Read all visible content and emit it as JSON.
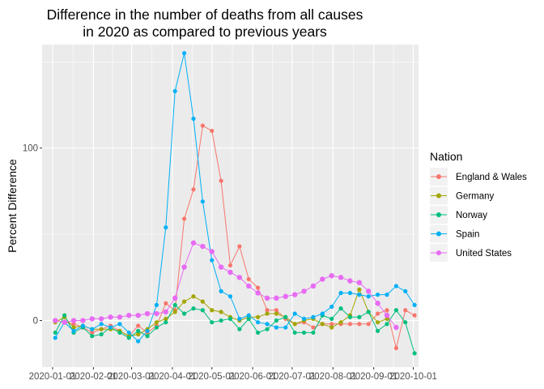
{
  "chart_data": {
    "type": "line",
    "title": [
      "Difference in the number of deaths from all causes",
      "in 2020 as compared to previous years"
    ],
    "xlabel": "",
    "ylabel": "Percent Difference",
    "x_ticks": [
      "2020-01-01",
      "2020-02-01",
      "2020-03-01",
      "2020-04-01",
      "2020-05-01",
      "2020-06-01",
      "2020-07-01",
      "2020-08-01",
      "2020-09-01",
      "2020-10-01"
    ],
    "y_ticks": [
      0,
      100
    ],
    "xlim": [
      "2019-12-24",
      "2020-10-05"
    ],
    "ylim": [
      -27,
      160
    ],
    "grid": true,
    "legend_position": "right",
    "legend_title": "Nation",
    "series": [
      {
        "name": "England & Wales",
        "color": "#F8766D",
        "points": [
          [
            "2020-01-03",
            0
          ],
          [
            "2020-01-10",
            -1
          ],
          [
            "2020-01-17",
            -2
          ],
          [
            "2020-01-24",
            -4
          ],
          [
            "2020-01-31",
            -7
          ],
          [
            "2020-02-07",
            -5
          ],
          [
            "2020-02-14",
            -3
          ],
          [
            "2020-02-21",
            -6
          ],
          [
            "2020-02-28",
            -9
          ],
          [
            "2020-03-06",
            -3
          ],
          [
            "2020-03-13",
            -7
          ],
          [
            "2020-03-20",
            -3
          ],
          [
            "2020-03-27",
            10
          ],
          [
            "2020-04-03",
            6
          ],
          [
            "2020-04-10",
            59
          ],
          [
            "2020-04-17",
            76
          ],
          [
            "2020-04-24",
            113
          ],
          [
            "2020-05-01",
            110
          ],
          [
            "2020-05-08",
            81
          ],
          [
            "2020-05-15",
            32
          ],
          [
            "2020-05-22",
            43
          ],
          [
            "2020-05-29",
            24
          ],
          [
            "2020-06-05",
            19
          ],
          [
            "2020-06-12",
            6
          ],
          [
            "2020-06-19",
            6
          ],
          [
            "2020-06-26",
            1
          ],
          [
            "2020-07-03",
            -2
          ],
          [
            "2020-07-10",
            -1
          ],
          [
            "2020-07-17",
            -4
          ],
          [
            "2020-07-24",
            -2
          ],
          [
            "2020-07-31",
            -2
          ],
          [
            "2020-08-07",
            -2
          ],
          [
            "2020-08-14",
            -2
          ],
          [
            "2020-08-21",
            -2
          ],
          [
            "2020-08-28",
            -2
          ],
          [
            "2020-09-04",
            4
          ],
          [
            "2020-09-11",
            6
          ],
          [
            "2020-09-18",
            -16
          ],
          [
            "2020-09-25",
            6
          ],
          [
            "2020-10-02",
            3
          ]
        ]
      },
      {
        "name": "Germany",
        "color": "#A3A500",
        "points": [
          [
            "2020-01-03",
            -1
          ],
          [
            "2020-01-10",
            2
          ],
          [
            "2020-01-17",
            -4
          ],
          [
            "2020-01-24",
            -3
          ],
          [
            "2020-01-31",
            -5
          ],
          [
            "2020-02-07",
            -5
          ],
          [
            "2020-02-14",
            -5
          ],
          [
            "2020-02-21",
            -6
          ],
          [
            "2020-02-28",
            -9
          ],
          [
            "2020-03-06",
            -8
          ],
          [
            "2020-03-13",
            -5
          ],
          [
            "2020-03-20",
            -1
          ],
          [
            "2020-03-27",
            1
          ],
          [
            "2020-04-03",
            5
          ],
          [
            "2020-04-10",
            11
          ],
          [
            "2020-04-17",
            14
          ],
          [
            "2020-04-24",
            11
          ],
          [
            "2020-05-01",
            6
          ],
          [
            "2020-05-08",
            5
          ],
          [
            "2020-05-15",
            2
          ],
          [
            "2020-05-22",
            0
          ],
          [
            "2020-05-29",
            2
          ],
          [
            "2020-06-05",
            2
          ],
          [
            "2020-06-12",
            4
          ],
          [
            "2020-06-19",
            4
          ],
          [
            "2020-06-26",
            2
          ],
          [
            "2020-07-03",
            -2
          ],
          [
            "2020-07-10",
            0
          ],
          [
            "2020-07-17",
            1
          ],
          [
            "2020-07-24",
            -2
          ],
          [
            "2020-07-31",
            -4
          ],
          [
            "2020-08-07",
            -1
          ],
          [
            "2020-08-14",
            3
          ],
          [
            "2020-08-21",
            18
          ],
          [
            "2020-08-28",
            5
          ],
          [
            "2020-09-04",
            -1
          ],
          [
            "2020-09-11",
            1
          ]
        ]
      },
      {
        "name": "Norway",
        "color": "#00BF7D",
        "points": [
          [
            "2020-01-03",
            -7
          ],
          [
            "2020-01-10",
            3
          ],
          [
            "2020-01-17",
            -7
          ],
          [
            "2020-01-24",
            -4
          ],
          [
            "2020-01-31",
            -9
          ],
          [
            "2020-02-07",
            -8
          ],
          [
            "2020-02-14",
            -4
          ],
          [
            "2020-02-21",
            -7
          ],
          [
            "2020-02-28",
            -10
          ],
          [
            "2020-03-06",
            -6
          ],
          [
            "2020-03-13",
            -9
          ],
          [
            "2020-03-20",
            -4
          ],
          [
            "2020-03-27",
            -1
          ],
          [
            "2020-04-03",
            9
          ],
          [
            "2020-04-10",
            4
          ],
          [
            "2020-04-17",
            7
          ],
          [
            "2020-04-24",
            6
          ],
          [
            "2020-05-01",
            -1
          ],
          [
            "2020-05-08",
            0
          ],
          [
            "2020-05-15",
            1
          ],
          [
            "2020-05-22",
            -5
          ],
          [
            "2020-05-29",
            1
          ],
          [
            "2020-06-05",
            -7
          ],
          [
            "2020-06-12",
            -5
          ],
          [
            "2020-06-19",
            0
          ],
          [
            "2020-06-26",
            2
          ],
          [
            "2020-07-03",
            -7
          ],
          [
            "2020-07-10",
            -7
          ],
          [
            "2020-07-17",
            -7
          ],
          [
            "2020-07-24",
            3
          ],
          [
            "2020-07-31",
            1
          ],
          [
            "2020-08-07",
            7
          ],
          [
            "2020-08-14",
            2
          ],
          [
            "2020-08-21",
            2
          ],
          [
            "2020-08-28",
            5
          ],
          [
            "2020-09-04",
            -6
          ],
          [
            "2020-09-11",
            -2
          ],
          [
            "2020-09-18",
            6
          ],
          [
            "2020-09-25",
            -1
          ],
          [
            "2020-10-02",
            -19
          ]
        ]
      },
      {
        "name": "Spain",
        "color": "#00B0F6",
        "points": [
          [
            "2020-01-03",
            -10
          ],
          [
            "2020-01-10",
            -1
          ],
          [
            "2020-01-17",
            -6
          ],
          [
            "2020-01-24",
            -3
          ],
          [
            "2020-01-31",
            -5
          ],
          [
            "2020-02-07",
            -2
          ],
          [
            "2020-02-14",
            -4
          ],
          [
            "2020-02-21",
            -2
          ],
          [
            "2020-02-28",
            -7
          ],
          [
            "2020-03-06",
            -12
          ],
          [
            "2020-03-13",
            -6
          ],
          [
            "2020-03-20",
            9
          ],
          [
            "2020-03-27",
            54
          ],
          [
            "2020-04-03",
            133
          ],
          [
            "2020-04-10",
            155
          ],
          [
            "2020-04-17",
            117
          ],
          [
            "2020-04-24",
            69
          ],
          [
            "2020-05-01",
            35
          ],
          [
            "2020-05-08",
            17
          ],
          [
            "2020-05-15",
            14
          ],
          [
            "2020-05-22",
            1
          ],
          [
            "2020-05-29",
            3
          ],
          [
            "2020-06-05",
            -1
          ],
          [
            "2020-06-12",
            -2
          ],
          [
            "2020-06-19",
            -4
          ],
          [
            "2020-06-26",
            -4
          ],
          [
            "2020-07-03",
            4
          ],
          [
            "2020-07-10",
            1
          ],
          [
            "2020-07-17",
            2
          ],
          [
            "2020-07-24",
            4
          ],
          [
            "2020-07-31",
            8
          ],
          [
            "2020-08-07",
            16
          ],
          [
            "2020-08-14",
            16
          ],
          [
            "2020-08-21",
            15
          ],
          [
            "2020-08-28",
            14
          ],
          [
            "2020-09-04",
            15
          ],
          [
            "2020-09-11",
            15
          ],
          [
            "2020-09-18",
            20
          ],
          [
            "2020-09-25",
            17
          ],
          [
            "2020-10-02",
            9
          ]
        ]
      },
      {
        "name": "United States",
        "color": "#E76BF3",
        "points": [
          [
            "2020-01-03",
            0
          ],
          [
            "2020-01-10",
            -1
          ],
          [
            "2020-01-17",
            0
          ],
          [
            "2020-01-24",
            0
          ],
          [
            "2020-01-31",
            1
          ],
          [
            "2020-02-07",
            1
          ],
          [
            "2020-02-14",
            2
          ],
          [
            "2020-02-21",
            2
          ],
          [
            "2020-02-28",
            3
          ],
          [
            "2020-03-06",
            3
          ],
          [
            "2020-03-13",
            4
          ],
          [
            "2020-03-20",
            4
          ],
          [
            "2020-03-27",
            5
          ],
          [
            "2020-04-03",
            13
          ],
          [
            "2020-04-10",
            31
          ],
          [
            "2020-04-17",
            45
          ],
          [
            "2020-04-24",
            43
          ],
          [
            "2020-05-01",
            40
          ],
          [
            "2020-05-08",
            31
          ],
          [
            "2020-05-15",
            28
          ],
          [
            "2020-05-22",
            25
          ],
          [
            "2020-05-29",
            20
          ],
          [
            "2020-06-05",
            16
          ],
          [
            "2020-06-12",
            13
          ],
          [
            "2020-06-19",
            13
          ],
          [
            "2020-06-26",
            14
          ],
          [
            "2020-07-03",
            15
          ],
          [
            "2020-07-10",
            17
          ],
          [
            "2020-07-17",
            20
          ],
          [
            "2020-07-24",
            24
          ],
          [
            "2020-07-31",
            26
          ],
          [
            "2020-08-07",
            25
          ],
          [
            "2020-08-14",
            23
          ],
          [
            "2020-08-21",
            22
          ],
          [
            "2020-08-28",
            17
          ],
          [
            "2020-09-04",
            10
          ],
          [
            "2020-09-11",
            3
          ],
          [
            "2020-09-18",
            -4
          ]
        ]
      }
    ]
  }
}
